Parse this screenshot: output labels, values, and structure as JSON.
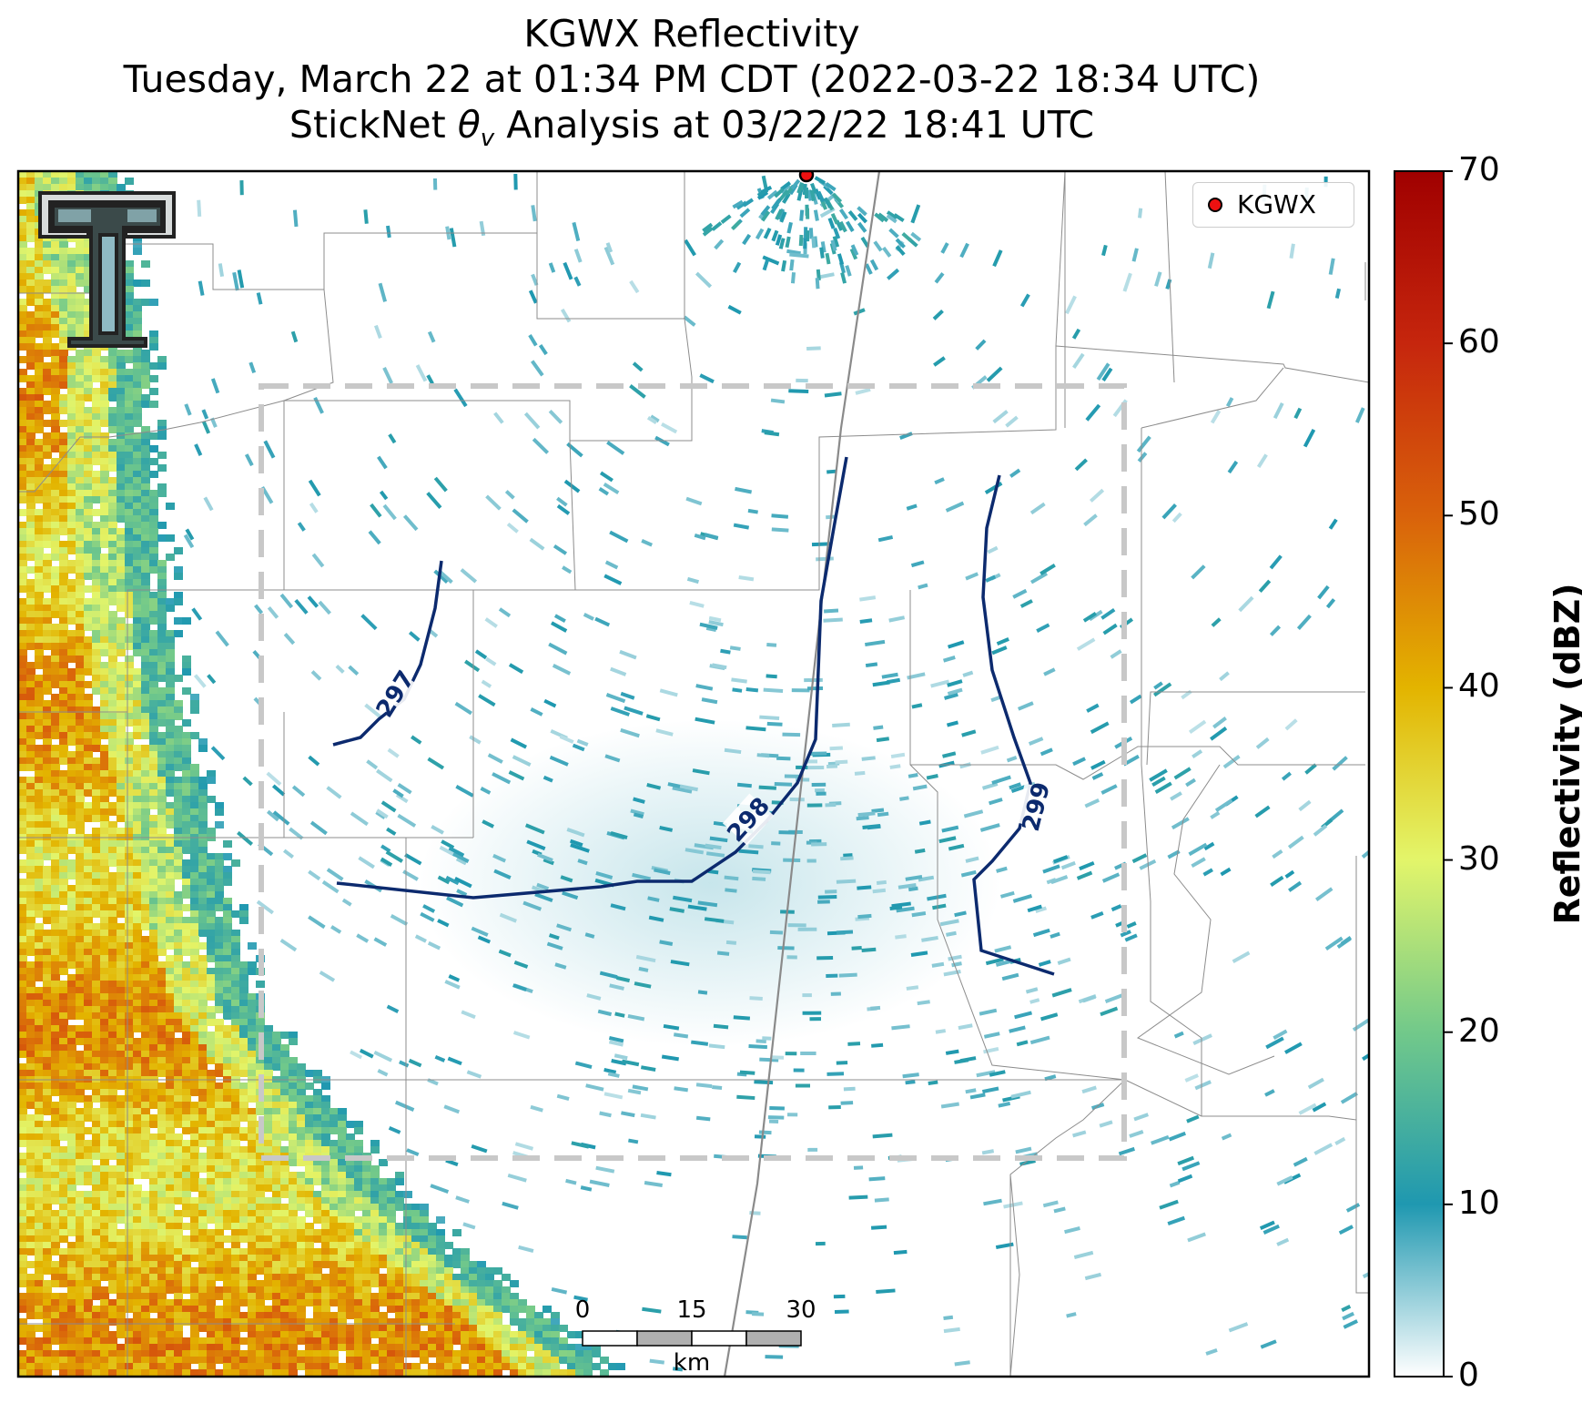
{
  "title": {
    "line1": "KGWX Reflectivity",
    "line2": "Tuesday, March 22 at 01:34 PM CDT (2022-03-22 18:34 UTC)",
    "line3": "StickNet θv Analysis at 03/22/22 18:41 UTC"
  },
  "legend": {
    "label": "KGWX",
    "marker_color": "#ee1111"
  },
  "colorbar": {
    "title": "Reflectivity (dBZ)",
    "ticks": [
      "0",
      "10",
      "20",
      "30",
      "40",
      "50",
      "60",
      "70"
    ],
    "range": [
      0,
      70
    ],
    "stops": [
      {
        "value": 0,
        "color": "#ffffff"
      },
      {
        "value": 10,
        "color": "#1f98b0"
      },
      {
        "value": 20,
        "color": "#72c98a"
      },
      {
        "value": 30,
        "color": "#e3f56a"
      },
      {
        "value": 40,
        "color": "#e3b400"
      },
      {
        "value": 50,
        "color": "#d9620b"
      },
      {
        "value": 60,
        "color": "#c6260d"
      },
      {
        "value": 70,
        "color": "#a00000"
      }
    ]
  },
  "scale_bar": {
    "ticks": [
      "0",
      "15",
      "30"
    ],
    "unit": "km"
  },
  "contours": {
    "color": "#0c2a6e",
    "levels": [
      "297",
      "298",
      "299"
    ]
  },
  "analysis_box": {
    "style": "dashed",
    "color": "#c8c8c8"
  },
  "colors": {
    "county_lines": "#8c8c8c",
    "highway": "#8a8a8a"
  },
  "logo": {
    "name": "Texas Tech double-T logo"
  }
}
